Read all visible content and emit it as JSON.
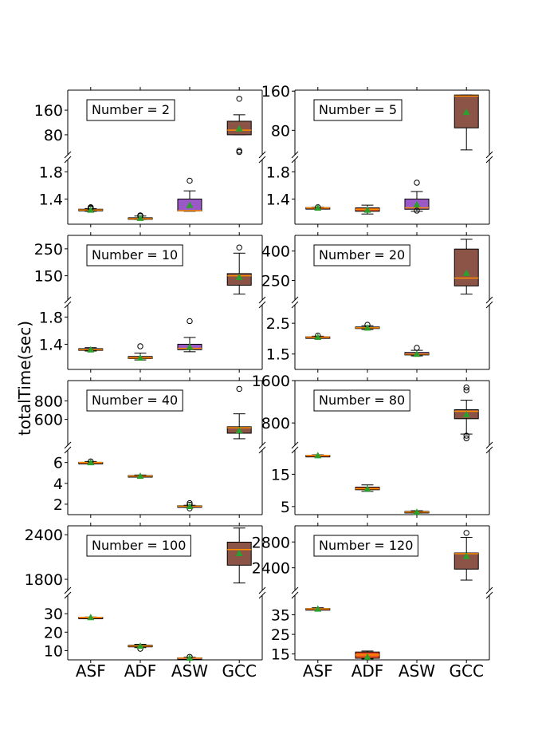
{
  "figure": {
    "ylabel": "totalTime(sec)",
    "categories": [
      "ASF",
      "ADF",
      "ASW",
      "GCC"
    ]
  },
  "chart_data": [
    {
      "type": "box",
      "title": "Number = 2",
      "categories": [
        "ASF",
        "ADF",
        "ASW",
        "GCC"
      ],
      "colors": [
        "#e8521f",
        "#e8521f",
        "#9b59c8",
        "#8b5447"
      ],
      "median_color": "#ff8c00",
      "mean_color": "#2ca02c",
      "top": {
        "ylim": [
          15,
          225
        ],
        "yticks": [
          80,
          160
        ],
        "boxes": [
          null,
          null,
          null,
          {
            "whislo": 80,
            "q1": 80,
            "med": 95,
            "q3": 124,
            "whishi": 145,
            "mean": 100,
            "fliers": [
              24,
              28,
              197
            ]
          }
        ]
      },
      "bottom": {
        "ylim": [
          1.03,
          1.98
        ],
        "yticks": [
          1.4,
          1.8
        ],
        "boxes": [
          {
            "whislo": 1.22,
            "q1": 1.235,
            "med": 1.24,
            "q3": 1.25,
            "whishi": 1.26,
            "mean": 1.24,
            "fliers": [
              1.26,
              1.27,
              1.28
            ]
          },
          {
            "whislo": 1.1,
            "q1": 1.105,
            "med": 1.11,
            "q3": 1.125,
            "whishi": 1.15,
            "mean": 1.12,
            "fliers": [
              1.15,
              1.16
            ]
          },
          {
            "whislo": 1.22,
            "q1": 1.225,
            "med": 1.23,
            "q3": 1.4,
            "whishi": 1.52,
            "mean": 1.31,
            "fliers": [
              1.67
            ]
          },
          null
        ]
      }
    },
    {
      "type": "box",
      "title": "Number = 5",
      "categories": [
        "ASF",
        "ADF",
        "ASW",
        "GCC"
      ],
      "colors": [
        "#e8521f",
        "#e8521f",
        "#9b59c8",
        "#8b5447"
      ],
      "median_color": "#ff8c00",
      "mean_color": "#2ca02c",
      "top": {
        "ylim": [
          30,
          162
        ],
        "yticks": [
          80,
          160
        ],
        "boxes": [
          null,
          null,
          null,
          {
            "whislo": 40,
            "q1": 85,
            "med": 150,
            "q3": 152,
            "whishi": 152,
            "mean": 117,
            "fliers": []
          }
        ]
      },
      "bottom": {
        "ylim": [
          1.03,
          1.98
        ],
        "yticks": [
          1.4,
          1.8
        ],
        "boxes": [
          {
            "whislo": 1.26,
            "q1": 1.265,
            "med": 1.27,
            "q3": 1.275,
            "whishi": 1.28,
            "mean": 1.27,
            "fliers": [
              1.28
            ]
          },
          {
            "whislo": 1.18,
            "q1": 1.22,
            "med": 1.25,
            "q3": 1.27,
            "whishi": 1.31,
            "mean": 1.24,
            "fliers": []
          },
          {
            "whislo": 1.22,
            "q1": 1.25,
            "med": 1.27,
            "q3": 1.4,
            "whishi": 1.51,
            "mean": 1.32,
            "fliers": [
              1.23,
              1.64
            ]
          },
          null
        ]
      }
    },
    {
      "type": "box",
      "title": "Number = 10",
      "categories": [
        "ASF",
        "ADF",
        "ASW",
        "GCC"
      ],
      "colors": [
        "#e8521f",
        "#e8521f",
        "#9b59c8",
        "#8b5447"
      ],
      "median_color": "#ff8c00",
      "mean_color": "#2ca02c",
      "top": {
        "ylim": [
          60,
          300
        ],
        "yticks": [
          150,
          250
        ],
        "boxes": [
          null,
          null,
          null,
          {
            "whislo": 82,
            "q1": 115,
            "med": 150,
            "q3": 158,
            "whishi": 234,
            "mean": 145,
            "fliers": [
              255
            ]
          }
        ]
      },
      "bottom": {
        "ylim": [
          1.03,
          1.98
        ],
        "yticks": [
          1.4,
          1.8
        ],
        "boxes": [
          {
            "whislo": 1.3,
            "q1": 1.31,
            "med": 1.32,
            "q3": 1.335,
            "whishi": 1.35,
            "mean": 1.32,
            "fliers": []
          },
          {
            "whislo": 1.17,
            "q1": 1.19,
            "med": 1.2,
            "q3": 1.22,
            "whishi": 1.27,
            "mean": 1.2,
            "fliers": [
              1.37
            ]
          },
          {
            "whislo": 1.29,
            "q1": 1.32,
            "med": 1.34,
            "q3": 1.4,
            "whishi": 1.5,
            "mean": 1.36,
            "fliers": [
              1.74
            ]
          },
          null
        ]
      }
    },
    {
      "type": "box",
      "title": "Number = 20",
      "categories": [
        "ASF",
        "ADF",
        "ASW",
        "GCC"
      ],
      "colors": [
        "#e8521f",
        "#e8521f",
        "#9b59c8",
        "#8b5447"
      ],
      "median_color": "#ff8c00",
      "mean_color": "#2ca02c",
      "top": {
        "ylim": [
          150,
          480
        ],
        "yticks": [
          250,
          400
        ],
        "boxes": [
          null,
          null,
          null,
          {
            "whislo": 180,
            "q1": 222,
            "med": 262,
            "q3": 410,
            "whishi": 460,
            "mean": 287,
            "fliers": []
          }
        ]
      },
      "bottom": {
        "ylim": [
          1.0,
          3.1
        ],
        "yticks": [
          1.5,
          2.5
        ],
        "boxes": [
          {
            "whislo": 2.02,
            "q1": 2.04,
            "med": 2.05,
            "q3": 2.06,
            "whishi": 2.08,
            "mean": 2.05,
            "fliers": [
              2.1
            ]
          },
          {
            "whislo": 2.3,
            "q1": 2.33,
            "med": 2.35,
            "q3": 2.38,
            "whishi": 2.42,
            "mean": 2.35,
            "fliers": [
              2.45
            ]
          },
          {
            "whislo": 1.44,
            "q1": 1.47,
            "med": 1.5,
            "q3": 1.55,
            "whishi": 1.62,
            "mean": 1.5,
            "fliers": [
              1.7
            ]
          },
          null
        ]
      }
    },
    {
      "type": "box",
      "title": "Number = 40",
      "categories": [
        "ASF",
        "ADF",
        "ASW",
        "GCC"
      ],
      "colors": [
        "#e8521f",
        "#e8521f",
        "#9b59c8",
        "#8b5447"
      ],
      "median_color": "#ff8c00",
      "mean_color": "#2ca02c",
      "top": {
        "ylim": [
          320,
          1020
        ],
        "yticks": [
          600,
          800
        ],
        "boxes": [
          null,
          null,
          null,
          {
            "whislo": 390,
            "q1": 450,
            "med": 510,
            "q3": 520,
            "whishi": 660,
            "mean": 480,
            "fliers": [
              930
            ]
          }
        ]
      },
      "bottom": {
        "ylim": [
          1.0,
          7.2
        ],
        "yticks": [
          2,
          4,
          6
        ],
        "boxes": [
          {
            "whislo": 5.9,
            "q1": 5.98,
            "med": 6.0,
            "q3": 6.02,
            "whishi": 6.1,
            "mean": 6.0,
            "fliers": [
              6.1
            ]
          },
          {
            "whislo": 4.6,
            "q1": 4.65,
            "med": 4.7,
            "q3": 4.75,
            "whishi": 4.8,
            "mean": 4.7,
            "fliers": []
          },
          {
            "whislo": 1.7,
            "q1": 1.76,
            "med": 1.8,
            "q3": 1.85,
            "whishi": 1.9,
            "mean": 1.8,
            "fliers": [
              1.6,
              1.95,
              2.1
            ]
          },
          null
        ]
      }
    },
    {
      "type": "box",
      "title": "Number = 80",
      "categories": [
        "ASF",
        "ADF",
        "ASW",
        "GCC"
      ],
      "colors": [
        "#e8521f",
        "#e8521f",
        "#9b59c8",
        "#8b5447"
      ],
      "median_color": "#ff8c00",
      "mean_color": "#2ca02c",
      "top": {
        "ylim": [
          380,
          1600
        ],
        "yticks": [
          800,
          1600
        ],
        "boxes": [
          null,
          null,
          null,
          {
            "whislo": 590,
            "q1": 880,
            "med": 1020,
            "q3": 1050,
            "whishi": 1230,
            "mean": 960,
            "fliers": [
              510,
              560,
              1420,
              1470
            ]
          }
        ]
      },
      "bottom": {
        "ylim": [
          2.5,
          22.5
        ],
        "yticks": [
          5,
          15
        ],
        "boxes": [
          {
            "whislo": 20.6,
            "q1": 20.75,
            "med": 20.8,
            "q3": 20.85,
            "whishi": 21.0,
            "mean": 20.8,
            "fliers": []
          },
          {
            "whislo": 9.7,
            "q1": 10.2,
            "med": 10.5,
            "q3": 11.0,
            "whishi": 11.7,
            "mean": 10.5,
            "fliers": []
          },
          {
            "whislo": 3.0,
            "q1": 3.2,
            "med": 3.3,
            "q3": 3.5,
            "whishi": 3.7,
            "mean": 3.3,
            "fliers": []
          },
          null
        ]
      }
    },
    {
      "type": "box",
      "title": "Number = 100",
      "categories": [
        "ASF",
        "ADF",
        "ASW",
        "GCC"
      ],
      "colors": [
        "#e8521f",
        "#e8521f",
        "#9b59c8",
        "#8b5447"
      ],
      "median_color": "#ff8c00",
      "mean_color": "#2ca02c",
      "top": {
        "ylim": [
          1650,
          2520
        ],
        "yticks": [
          1800,
          2400
        ],
        "boxes": [
          null,
          null,
          null,
          {
            "whislo": 1750,
            "q1": 1990,
            "med": 2200,
            "q3": 2300,
            "whishi": 2490,
            "mean": 2150,
            "fliers": []
          }
        ]
      },
      "bottom": {
        "ylim": [
          5,
          40
        ],
        "yticks": [
          10,
          20,
          30
        ],
        "boxes": [
          {
            "whislo": 27.8,
            "q1": 27.9,
            "med": 28.0,
            "q3": 28.1,
            "whishi": 28.2,
            "mean": 28.0,
            "fliers": []
          },
          {
            "whislo": 11.6,
            "q1": 12.2,
            "med": 12.5,
            "q3": 12.9,
            "whishi": 13.4,
            "mean": 12.5,
            "fliers": [
              11.0
            ]
          },
          {
            "whislo": 5.5,
            "q1": 5.7,
            "med": 5.9,
            "q3": 6.1,
            "whishi": 6.4,
            "mean": 6.0,
            "fliers": [
              6.6
            ]
          },
          null
        ]
      }
    },
    {
      "type": "box",
      "title": "Number = 120",
      "categories": [
        "ASF",
        "ADF",
        "ASW",
        "GCC"
      ],
      "colors": [
        "#e8521f",
        "#e8521f",
        "#9b59c8",
        "#8b5447"
      ],
      "median_color": "#ff8c00",
      "mean_color": "#2ca02c",
      "top": {
        "ylim": [
          2050,
          3050
        ],
        "yticks": [
          2400,
          2800
        ],
        "boxes": [
          null,
          null,
          null,
          {
            "whislo": 2210,
            "q1": 2380,
            "med": 2620,
            "q3": 2630,
            "whishi": 2870,
            "mean": 2580,
            "fliers": [
              2940
            ]
          }
        ]
      },
      "bottom": {
        "ylim": [
          12,
          45
        ],
        "yticks": [
          15,
          25,
          35
        ],
        "boxes": [
          {
            "whislo": 37.5,
            "q1": 37.8,
            "med": 38.0,
            "q3": 38.2,
            "whishi": 38.6,
            "mean": 38.0,
            "fliers": []
          },
          {
            "whislo": 12.5,
            "q1": 12.8,
            "med": 14.5,
            "q3": 16.0,
            "whishi": 16.5,
            "mean": 13.5,
            "fliers": []
          },
          null,
          null
        ]
      }
    }
  ]
}
